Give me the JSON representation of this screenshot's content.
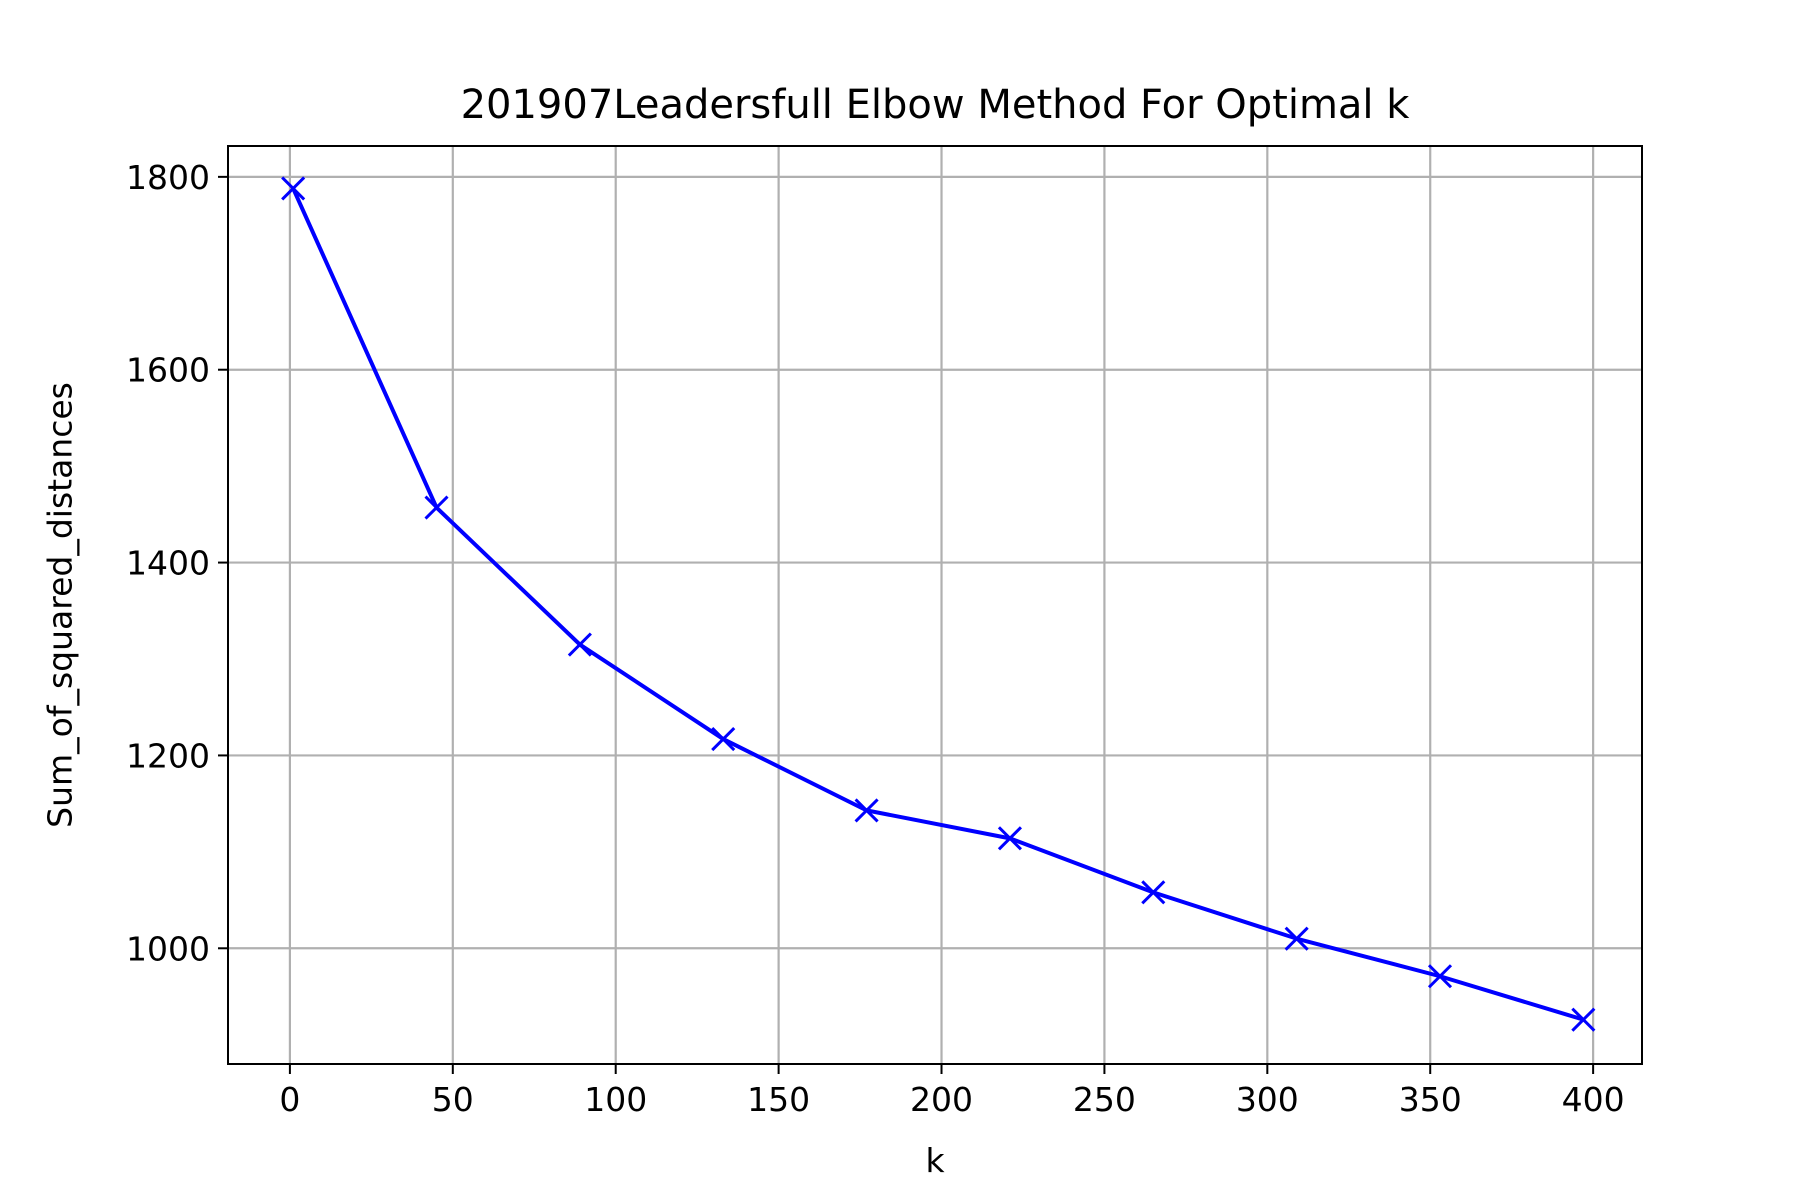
{
  "chart_data": {
    "type": "line",
    "title": "201907Leadersfull Elbow Method For Optimal k",
    "xlabel": "k",
    "ylabel": "Sum_of_squared_distances",
    "xlim": [
      -19,
      415
    ],
    "ylim": [
      880,
      1832
    ],
    "xticks": [
      0,
      50,
      100,
      150,
      200,
      250,
      300,
      350,
      400
    ],
    "yticks": [
      1000,
      1200,
      1400,
      1600,
      1800
    ],
    "grid": true,
    "series": [
      {
        "color": "#0000ff",
        "marker": "x",
        "x": [
          1,
          45,
          89,
          133,
          177,
          221,
          265,
          309,
          353,
          397
        ],
        "y": [
          1788,
          1457,
          1315,
          1217,
          1143,
          1114,
          1058,
          1010,
          971,
          926
        ]
      }
    ]
  }
}
